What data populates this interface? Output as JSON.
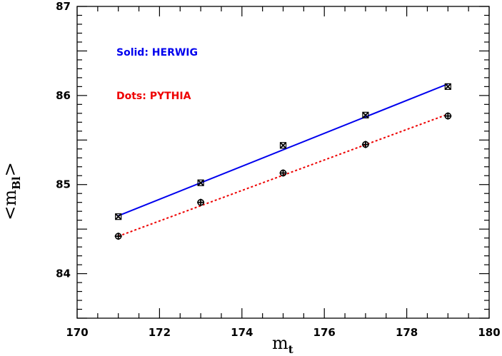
{
  "chart_data": {
    "type": "line",
    "xlabel": "m",
    "xlabel_sub": "t",
    "ylabel": "<m",
    "ylabel_sub": "Bl",
    "ylabel_suffix": ">",
    "xlim": [
      170,
      180
    ],
    "ylim": [
      83.5,
      87
    ],
    "xticks": [
      170,
      172,
      174,
      176,
      178,
      180
    ],
    "yticks": [
      84,
      85,
      86,
      87
    ],
    "grid": false,
    "legend_position": "top-left",
    "series": [
      {
        "name": "Solid: HERWIG",
        "color": "#0000ee",
        "line_style": "solid",
        "marker": "x-cross",
        "x": [
          171,
          173,
          175,
          177,
          179
        ],
        "y": [
          84.64,
          85.02,
          85.44,
          85.78,
          86.1
        ],
        "fit": [
          [
            171,
            84.65
          ],
          [
            179,
            86.13
          ]
        ]
      },
      {
        "name": "Dots: PYTHIA",
        "color": "#ee0000",
        "line_style": "dotted",
        "marker": "circle-plus",
        "x": [
          171,
          173,
          175,
          177,
          179
        ],
        "y": [
          84.42,
          84.8,
          85.13,
          85.45,
          85.77
        ],
        "fit": [
          [
            171,
            84.42
          ],
          [
            179,
            85.79
          ]
        ]
      }
    ]
  }
}
